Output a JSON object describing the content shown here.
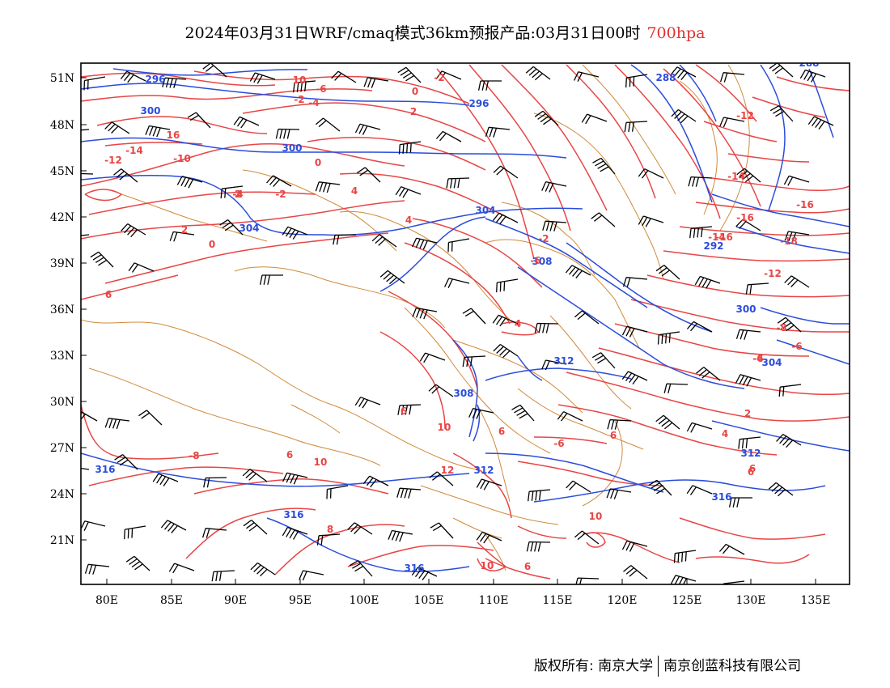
{
  "title": {
    "main": "2024年03月31日WRF/cmaq模式36km预报产品:03月31日00时",
    "level": "700hpa"
  },
  "axes": {
    "lat_labels": [
      "51N",
      "48N",
      "45N",
      "42N",
      "39N",
      "36N",
      "33N",
      "30N",
      "27N",
      "24N",
      "21N"
    ],
    "lon_labels": [
      "80E",
      "85E",
      "90E",
      "95E",
      "100E",
      "105E",
      "110E",
      "115E",
      "120E",
      "125E",
      "130E",
      "135E"
    ]
  },
  "height_labels": [
    "296",
    "300",
    "300",
    "304",
    "304",
    "312",
    "308",
    "312",
    "316",
    "316",
    "316",
    "312",
    "296",
    "288",
    "300",
    "304",
    "316",
    "292",
    "288",
    "308"
  ],
  "temperature_labels": [
    "10",
    "-6",
    "-4",
    "-2",
    "0",
    "-2",
    "2",
    "-10",
    "-12",
    "-14",
    "16",
    "2",
    "-4",
    "0",
    "-2",
    "4",
    "4",
    "0",
    "2",
    "6",
    "-2",
    "-6",
    "4",
    "6",
    "10",
    "6",
    "-6",
    "-8",
    "6",
    "10",
    "12",
    "8",
    "10",
    "6",
    "10",
    "6",
    "6",
    "2",
    "4",
    "6",
    "-12",
    "-14",
    "-16",
    "-16",
    "-16",
    "-18",
    "-14",
    "-12",
    "-6",
    "-8",
    "-4",
    "-6"
  ],
  "colors": {
    "temperature": "#e84545",
    "height": "#2a4cdc",
    "boundary": "#d08a3a",
    "barb": "#000000"
  },
  "footer": {
    "left": "版权所有: 南京大学",
    "right": "南京创蓝科技有限公司"
  }
}
